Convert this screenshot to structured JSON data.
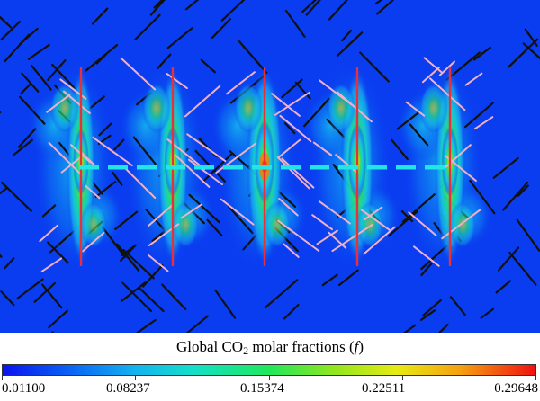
{
  "legend": {
    "title_prefix": "Global CO",
    "title_subscript": "2",
    "title_suffix": " molar fractions (",
    "title_variable": "f",
    "title_close": ")",
    "ticks": [
      "0.01100",
      "0.08237",
      "0.15374",
      "0.22511",
      "0.29648"
    ]
  },
  "colors": {
    "background": "#0a3cf0",
    "wellbore": "#e8303a",
    "transect": "#22e6e6",
    "natural_fracture": "#111111",
    "hydraulic_fracture": "#f0b0c8"
  },
  "diagram": {
    "type": "co2-concentration-field",
    "wellbore_count": 5
  }
}
